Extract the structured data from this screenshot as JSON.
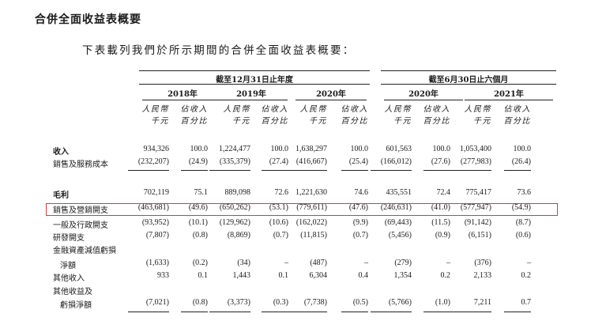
{
  "section_title": "合併全面收益表概要",
  "intro": "下表載列我們於所示期間的合併全面收益表概要：",
  "header": {
    "group_full_year": "截至12月31日止年度",
    "group_half_year": "截至6月30日止六個月",
    "years": [
      "2018年",
      "2019年",
      "2020年",
      "2020年",
      "2021年"
    ],
    "sub_amount": [
      "人民幣",
      "千元"
    ],
    "sub_pct": [
      "佔收入",
      "百分比"
    ]
  },
  "rows": [
    {
      "label": "收入",
      "bold": true,
      "values": [
        "934,326",
        "100.0",
        "1,224,477",
        "100.0",
        "1,638,297",
        "100.0",
        "601,563",
        "100.0",
        "1,053,400",
        "100.0"
      ]
    },
    {
      "label": "銷售及服務成本",
      "values": [
        "(232,207)",
        "(24.9)",
        "(335,379)",
        "(27.4)",
        "(416,667)",
        "(25.4)",
        "(166,012)",
        "(27.6)",
        "(277,983)",
        "(26.4)"
      ]
    },
    {
      "label": "毛利",
      "bold": true,
      "values": [
        "702,119",
        "75.1",
        "889,098",
        "72.6",
        "1,221,630",
        "74.6",
        "435,551",
        "72.4",
        "775,417",
        "73.6"
      ]
    },
    {
      "label": "銷售及營銷開支",
      "highlight": true,
      "values": [
        "(463,681)",
        "(49.6)",
        "(650,262)",
        "(53.1)",
        "(779,611)",
        "(47.6)",
        "(246,631)",
        "(41.0)",
        "(577,947)",
        "(54.9)"
      ]
    },
    {
      "label": "一般及行政開支",
      "values": [
        "(93,952)",
        "(10.1)",
        "(129,962)",
        "(10.6)",
        "(162,022)",
        "(9.9)",
        "(69,443)",
        "(11.5)",
        "(91,142)",
        "(8.7)"
      ]
    },
    {
      "label": "研發開支",
      "values": [
        "(7,807)",
        "(0.8)",
        "(8,869)",
        "(0.7)",
        "(11,815)",
        "(0.7)",
        "(5,456)",
        "(0.9)",
        "(6,151)",
        "(0.6)"
      ]
    },
    {
      "label": "金融資產減值虧損",
      "values": []
    },
    {
      "label": "淨額",
      "indent": true,
      "values": [
        "(1,633)",
        "(0.2)",
        "(34)",
        "–",
        "(487)",
        "–",
        "(279)",
        "–",
        "(376)",
        "–"
      ]
    },
    {
      "label": "其他收入",
      "values": [
        "933",
        "0.1",
        "1,443",
        "0.1",
        "6,304",
        "0.4",
        "1,354",
        "0.2",
        "2,133",
        "0.2"
      ]
    },
    {
      "label": "其他收益及",
      "values": []
    },
    {
      "label": "虧損淨額",
      "indent": true,
      "values": [
        "(7,021)",
        "(0.8)",
        "(3,373)",
        "(0.3)",
        "(7,738)",
        "(0.5)",
        "(5,766)",
        "(1.0)",
        "7,211",
        "0.7"
      ]
    }
  ]
}
